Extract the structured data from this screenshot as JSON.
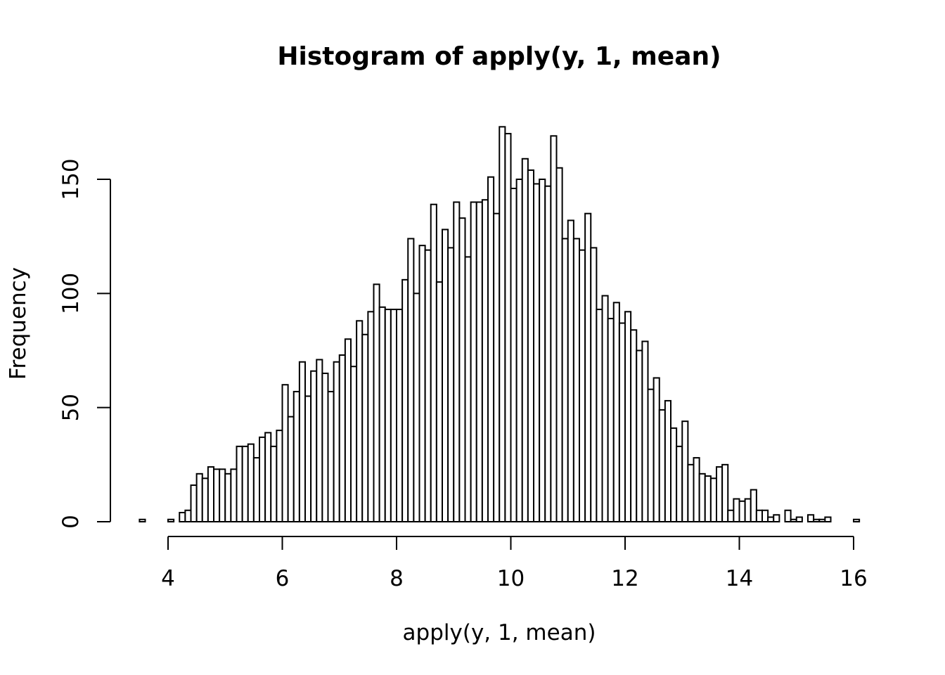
{
  "chart_data": {
    "type": "bar",
    "title": "Histogram of apply(y, 1, mean)",
    "xlabel": "apply(y, 1, mean)",
    "ylabel": "Frequency",
    "xlim": [
      3.5,
      16.1
    ],
    "ylim": [
      0,
      175
    ],
    "x_ticks": [
      4,
      6,
      8,
      10,
      12,
      14,
      16
    ],
    "y_ticks": [
      0,
      50,
      100,
      150
    ],
    "bin_width": 0.1,
    "bins_start": 3.5,
    "values": [
      1,
      0,
      0,
      0,
      0,
      1,
      0,
      4,
      5,
      16,
      21,
      19,
      24,
      23,
      23,
      21,
      23,
      33,
      33,
      34,
      28,
      37,
      39,
      33,
      40,
      60,
      46,
      57,
      70,
      55,
      66,
      71,
      65,
      57,
      70,
      73,
      80,
      68,
      88,
      82,
      92,
      104,
      94,
      93,
      93,
      93,
      106,
      124,
      100,
      121,
      119,
      139,
      105,
      128,
      120,
      140,
      133,
      116,
      140,
      140,
      141,
      151,
      135,
      173,
      170,
      146,
      150,
      159,
      154,
      148,
      150,
      147,
      169,
      155,
      124,
      132,
      124,
      119,
      135,
      120,
      93,
      99,
      89,
      96,
      87,
      92,
      84,
      75,
      79,
      58,
      63,
      49,
      53,
      41,
      33,
      44,
      25,
      28,
      21,
      20,
      19,
      24,
      25,
      5,
      10,
      9,
      10,
      14,
      5,
      5,
      2,
      3,
      0,
      5,
      1,
      2,
      0,
      3,
      1,
      1,
      2,
      0,
      0,
      0,
      0,
      1
    ],
    "grid": false
  }
}
